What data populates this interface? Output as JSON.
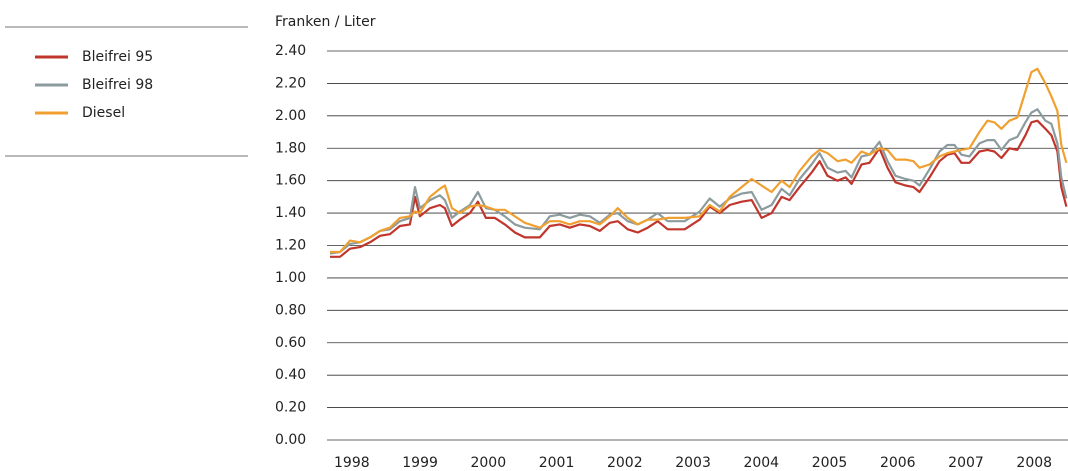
{
  "chart_data": {
    "type": "line",
    "ylabel": "Franken / Liter",
    "x": [
      1998.0,
      1998.146,
      1998.293,
      1998.439,
      1998.586,
      1998.732,
      1998.878,
      1999.025,
      1999.171,
      1999.245,
      1999.318,
      1999.464,
      1999.611,
      1999.684,
      1999.786,
      1999.903,
      2000.05,
      2000.167,
      2000.284,
      2000.416,
      2000.562,
      2000.709,
      2000.855,
      2001.075,
      2001.221,
      2001.367,
      2001.514,
      2001.66,
      2001.807,
      2001.953,
      2002.1,
      2002.217,
      2002.363,
      2002.51,
      2002.656,
      2002.802,
      2002.949,
      2003.198,
      2003.417,
      2003.564,
      2003.71,
      2003.857,
      2004.032,
      2004.179,
      2004.325,
      2004.471,
      2004.618,
      2004.735,
      2004.881,
      2005.057,
      2005.174,
      2005.291,
      2005.438,
      2005.555,
      2005.643,
      2005.789,
      2005.906,
      2006.053,
      2006.17,
      2006.287,
      2006.433,
      2006.551,
      2006.638,
      2006.785,
      2006.931,
      2007.048,
      2007.151,
      2007.253,
      2007.37,
      2007.517,
      2007.634,
      2007.736,
      2007.839,
      2007.956,
      2008.073,
      2008.19,
      2008.278,
      2008.366,
      2008.483,
      2008.571,
      2008.659,
      2008.717,
      2008.791
    ],
    "series": [
      {
        "name": "Bleifrei 95",
        "color": "#c0362c",
        "values": [
          1.13,
          1.13,
          1.18,
          1.19,
          1.22,
          1.26,
          1.27,
          1.32,
          1.33,
          1.5,
          1.38,
          1.43,
          1.45,
          1.43,
          1.32,
          1.36,
          1.4,
          1.47,
          1.37,
          1.37,
          1.33,
          1.28,
          1.25,
          1.25,
          1.32,
          1.33,
          1.31,
          1.33,
          1.32,
          1.29,
          1.34,
          1.35,
          1.3,
          1.28,
          1.31,
          1.35,
          1.3,
          1.3,
          1.36,
          1.44,
          1.4,
          1.45,
          1.47,
          1.48,
          1.37,
          1.4,
          1.5,
          1.48,
          1.56,
          1.65,
          1.72,
          1.63,
          1.6,
          1.62,
          1.58,
          1.7,
          1.71,
          1.8,
          1.68,
          1.59,
          1.57,
          1.56,
          1.53,
          1.62,
          1.72,
          1.76,
          1.77,
          1.71,
          1.71,
          1.78,
          1.79,
          1.78,
          1.74,
          1.8,
          1.79,
          1.88,
          1.96,
          1.97,
          1.92,
          1.88,
          1.78,
          1.56,
          1.44
        ]
      },
      {
        "name": "Bleifrei 98",
        "color": "#8c9b9e",
        "values": [
          1.15,
          1.16,
          1.21,
          1.22,
          1.25,
          1.29,
          1.3,
          1.35,
          1.37,
          1.56,
          1.43,
          1.48,
          1.51,
          1.48,
          1.37,
          1.41,
          1.45,
          1.53,
          1.43,
          1.42,
          1.38,
          1.33,
          1.31,
          1.3,
          1.38,
          1.39,
          1.37,
          1.39,
          1.38,
          1.34,
          1.39,
          1.4,
          1.35,
          1.33,
          1.36,
          1.4,
          1.35,
          1.35,
          1.41,
          1.49,
          1.44,
          1.49,
          1.52,
          1.53,
          1.42,
          1.45,
          1.55,
          1.51,
          1.61,
          1.7,
          1.77,
          1.68,
          1.65,
          1.66,
          1.62,
          1.75,
          1.76,
          1.84,
          1.72,
          1.63,
          1.61,
          1.6,
          1.57,
          1.67,
          1.78,
          1.82,
          1.82,
          1.76,
          1.75,
          1.83,
          1.85,
          1.85,
          1.79,
          1.85,
          1.87,
          1.96,
          2.02,
          2.04,
          1.97,
          1.95,
          1.83,
          1.62,
          1.49
        ]
      },
      {
        "name": "Diesel",
        "color": "#f0a030",
        "values": [
          1.16,
          1.16,
          1.23,
          1.22,
          1.25,
          1.29,
          1.31,
          1.37,
          1.38,
          1.41,
          1.4,
          1.5,
          1.55,
          1.57,
          1.43,
          1.4,
          1.44,
          1.45,
          1.44,
          1.42,
          1.42,
          1.38,
          1.34,
          1.31,
          1.35,
          1.35,
          1.33,
          1.35,
          1.35,
          1.33,
          1.38,
          1.43,
          1.37,
          1.33,
          1.36,
          1.36,
          1.37,
          1.37,
          1.38,
          1.45,
          1.41,
          1.5,
          1.56,
          1.61,
          1.57,
          1.53,
          1.6,
          1.56,
          1.66,
          1.75,
          1.79,
          1.77,
          1.72,
          1.73,
          1.71,
          1.78,
          1.76,
          1.8,
          1.79,
          1.73,
          1.73,
          1.72,
          1.68,
          1.7,
          1.75,
          1.77,
          1.78,
          1.79,
          1.8,
          1.9,
          1.97,
          1.96,
          1.92,
          1.97,
          1.99,
          2.15,
          2.27,
          2.29,
          2.2,
          2.12,
          2.03,
          1.82,
          1.71
        ]
      }
    ],
    "xlim": [
      1998,
      2008.8
    ],
    "xticks": [
      1998,
      1999,
      2000,
      2001,
      2002,
      2003,
      2004,
      2005,
      2006,
      2007,
      2008
    ],
    "ylim": [
      0,
      2.4
    ],
    "yticks": [
      {
        "value": 0,
        "label": "0.00"
      },
      {
        "value": 0.2,
        "label": "0.20"
      },
      {
        "value": 0.4,
        "label": "0.40"
      },
      {
        "value": 0.6,
        "label": "0.60"
      },
      {
        "value": 0.8,
        "label": "0.80"
      },
      {
        "value": 1,
        "label": "1.00"
      },
      {
        "value": 1.2,
        "label": "1.20"
      },
      {
        "value": 1.4,
        "label": "1.40"
      },
      {
        "value": 1.6,
        "label": "1.60"
      },
      {
        "value": 1.8,
        "label": "1.80"
      },
      {
        "value": 2,
        "label": "2.00"
      },
      {
        "value": 2.2,
        "label": "2.20"
      },
      {
        "value": 2.4,
        "label": "2.40"
      }
    ],
    "grid": true,
    "legend": "left"
  }
}
